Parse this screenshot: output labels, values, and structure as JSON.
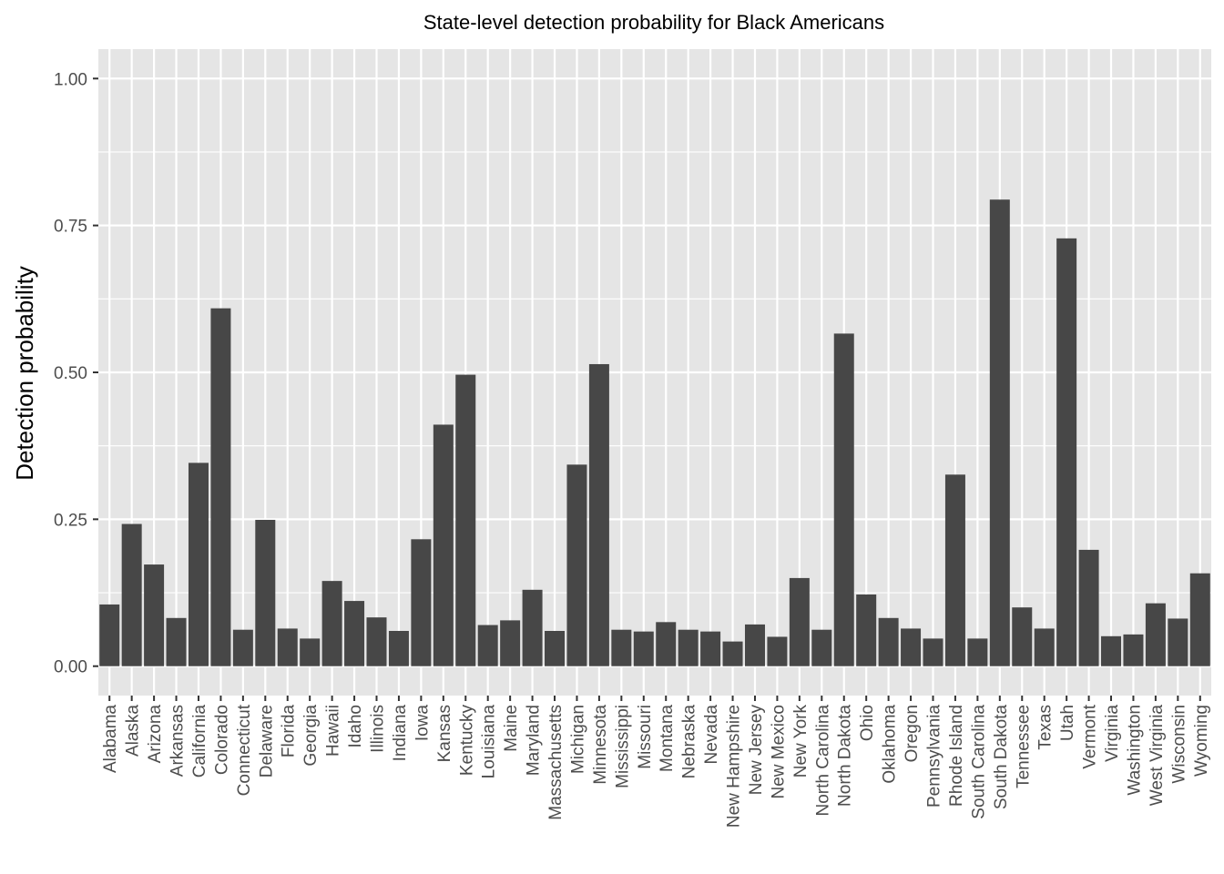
{
  "chart_data": {
    "type": "bar",
    "title": "State-level detection probability for Black Americans",
    "xlabel": "",
    "ylabel": "Detection probability",
    "ylim": [
      -0.05,
      1.05
    ],
    "yticks": [
      "0.00",
      "0.25",
      "0.50",
      "0.75",
      "1.00"
    ],
    "ytick_values": [
      0,
      0.25,
      0.5,
      0.75,
      1.0
    ],
    "grid": true,
    "legend": "none",
    "colors": {
      "bar": "#474747",
      "panel": "#e5e5e5",
      "grid": "#ffffff",
      "tick": "#4d4d4d"
    },
    "categories": [
      "Alabama",
      "Alaska",
      "Arizona",
      "Arkansas",
      "California",
      "Colorado",
      "Connecticut",
      "Delaware",
      "Florida",
      "Georgia",
      "Hawaii",
      "Idaho",
      "Illinois",
      "Indiana",
      "Iowa",
      "Kansas",
      "Kentucky",
      "Louisiana",
      "Maine",
      "Maryland",
      "Massachusetts",
      "Michigan",
      "Minnesota",
      "Mississippi",
      "Missouri",
      "Montana",
      "Nebraska",
      "Nevada",
      "New Hampshire",
      "New Jersey",
      "New Mexico",
      "New York",
      "North Carolina",
      "North Dakota",
      "Ohio",
      "Oklahoma",
      "Oregon",
      "Pennsylvania",
      "Rhode Island",
      "South Carolina",
      "South Dakota",
      "Tennessee",
      "Texas",
      "Utah",
      "Vermont",
      "Virginia",
      "Washington",
      "West Virginia",
      "Wisconsin",
      "Wyoming"
    ],
    "values": [
      0.105,
      0.242,
      0.173,
      0.082,
      0.346,
      0.609,
      0.062,
      0.249,
      0.064,
      0.047,
      0.145,
      0.111,
      0.083,
      0.06,
      0.216,
      0.411,
      0.496,
      0.07,
      0.078,
      0.13,
      0.06,
      0.343,
      0.514,
      0.062,
      0.059,
      0.075,
      0.062,
      0.059,
      0.042,
      0.071,
      0.05,
      0.15,
      0.062,
      0.566,
      0.122,
      0.082,
      0.064,
      0.047,
      0.326,
      0.047,
      0.794,
      0.1,
      0.064,
      0.728,
      0.198,
      0.051,
      0.054,
      0.107,
      0.081,
      0.158
    ]
  }
}
